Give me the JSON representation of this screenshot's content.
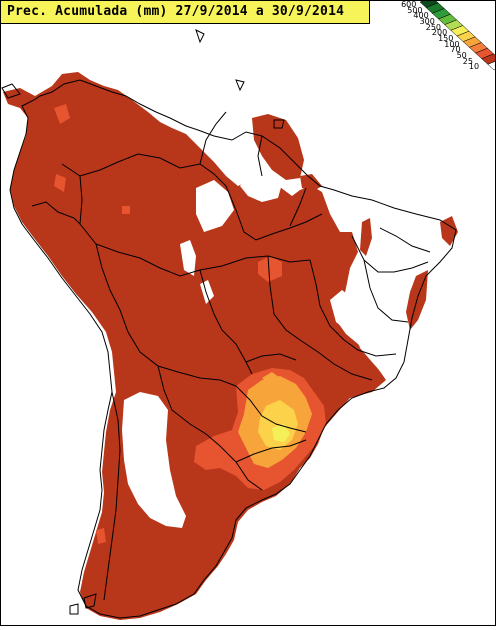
{
  "title": "Prec. Acumulada (mm) 27/9/2014 a 30/9/2014",
  "legend": {
    "labels": [
      "600",
      "500",
      "400",
      "300",
      "250",
      "200",
      "150",
      "100",
      "70",
      "50",
      "25",
      "10"
    ],
    "colors": [
      "#0b4a1c",
      "#1a7a2a",
      "#2e9c3a",
      "#64bc3c",
      "#b3dc55",
      "#f5f05a",
      "#fcd24a",
      "#f7a53b",
      "#f27e3a",
      "#e65530",
      "#b8361a",
      "#ffffff"
    ]
  },
  "palette": {
    "background": "#ffffff",
    "heavy_rain": "#b8361a",
    "orange": "#e65530",
    "light_orange": "#f7a53b",
    "yellow": "#fcd24a",
    "pale_yellow": "#f5f05a",
    "border_lines": "#000000",
    "title_bar": "#f7f45a"
  }
}
